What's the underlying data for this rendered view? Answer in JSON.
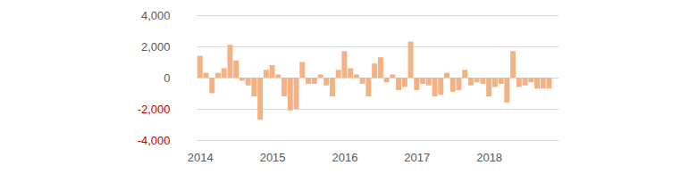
{
  "chart_data": {
    "type": "bar",
    "categories": [
      "2014",
      null,
      null,
      null,
      null,
      null,
      null,
      null,
      null,
      null,
      null,
      null,
      "2015",
      null,
      null,
      null,
      null,
      null,
      null,
      null,
      null,
      null,
      null,
      null,
      "2016",
      null,
      null,
      null,
      null,
      null,
      null,
      null,
      null,
      null,
      null,
      null,
      "2017",
      null,
      null,
      null,
      null,
      null,
      null,
      null,
      null,
      null,
      null,
      null,
      "2018",
      null,
      null,
      null,
      null,
      null,
      null,
      null,
      null,
      null,
      null,
      null
    ],
    "values": [
      1400,
      300,
      -1000,
      300,
      600,
      2100,
      1100,
      -200,
      -500,
      -1200,
      -2700,
      500,
      800,
      200,
      -1200,
      -2100,
      -2000,
      1000,
      -400,
      -400,
      200,
      -500,
      -1200,
      500,
      1700,
      600,
      200,
      -400,
      -1200,
      900,
      1300,
      -300,
      200,
      -800,
      -600,
      2300,
      -800,
      -400,
      -500,
      -1200,
      -1100,
      300,
      -900,
      -800,
      500,
      -500,
      -300,
      -400,
      -1200,
      -600,
      -400,
      -1600,
      1700,
      -600,
      -500,
      -300,
      -700,
      -700,
      -700,
      0
    ],
    "color": "#f4b183",
    "ylim": [
      -4000,
      4000
    ],
    "yticks": [
      {
        "value": -4000,
        "label": "-4,000"
      },
      {
        "value": -2000,
        "label": "-2,000"
      },
      0,
      {
        "value": 2000,
        "label": "2,000"
      },
      {
        "value": 4000,
        "label": "4,000"
      }
    ],
    "grid": true
  }
}
